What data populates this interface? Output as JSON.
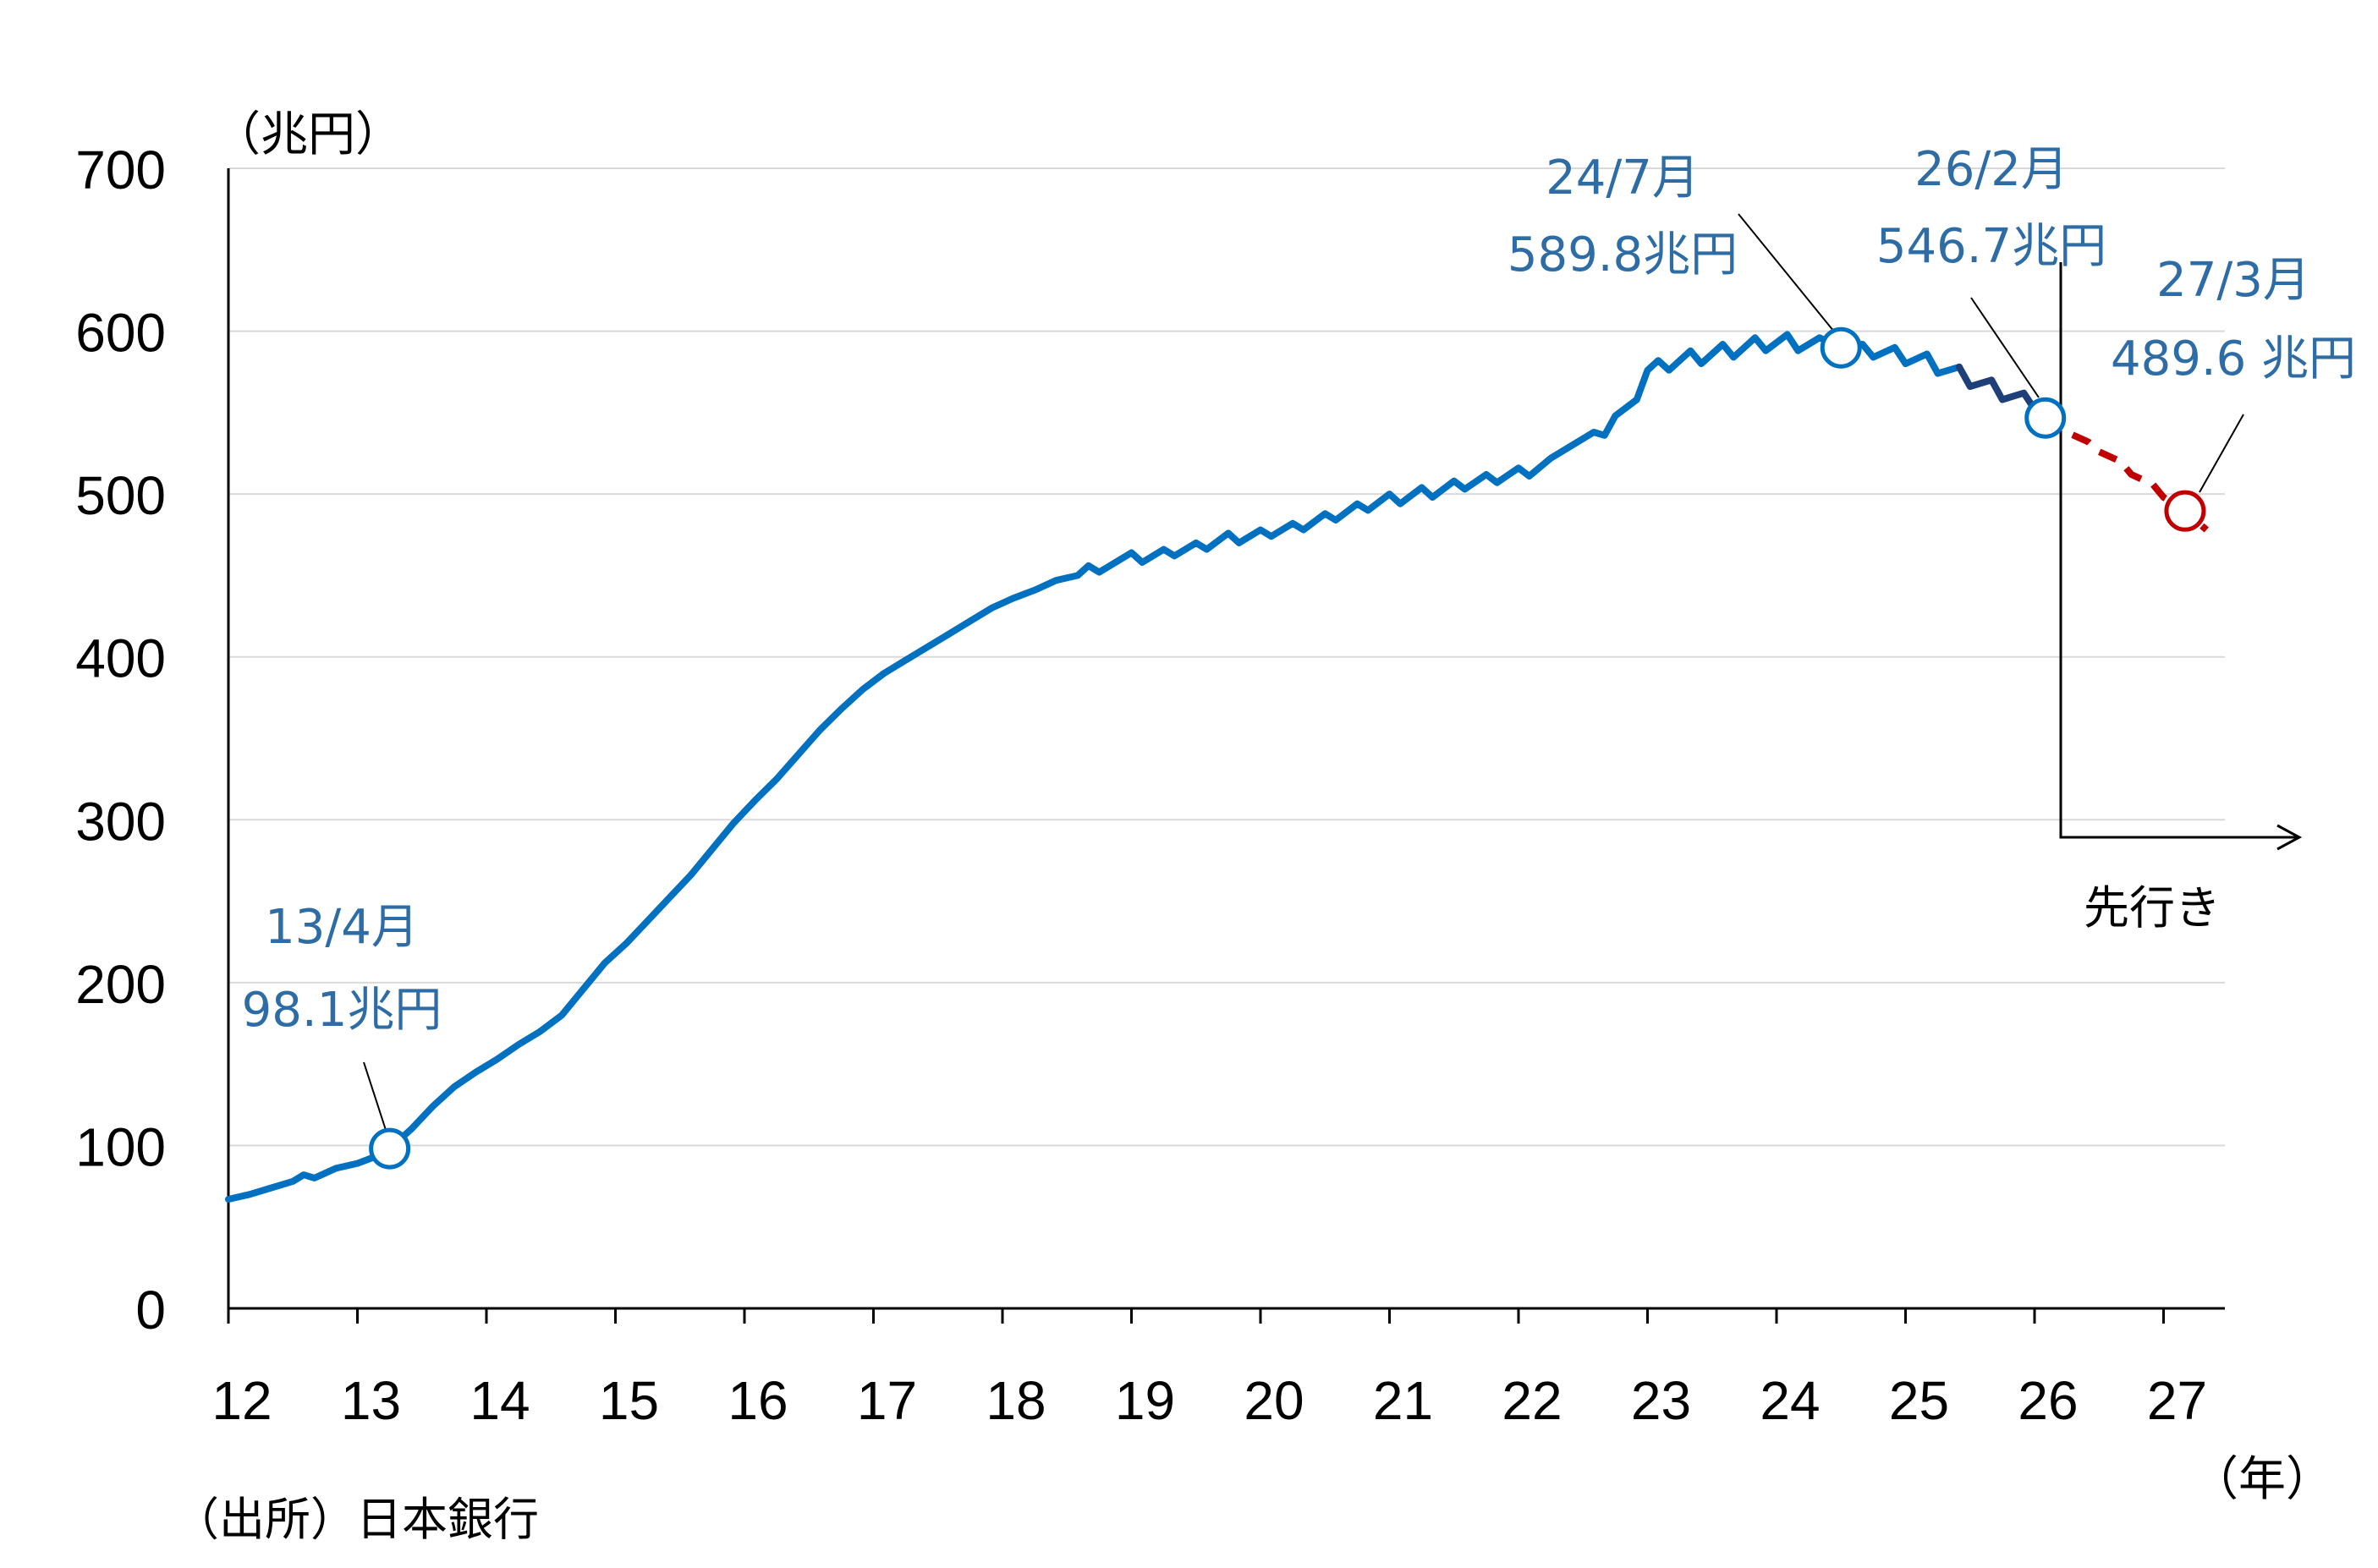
{
  "chart_data": {
    "type": "line",
    "y_unit_label": "（兆円）",
    "x_unit_label": "（年）",
    "source_note": "（出所）日本銀行",
    "forecast_label": "先行き",
    "ylim": [
      0,
      700
    ],
    "y_ticks": [
      "0",
      "100",
      "200",
      "300",
      "400",
      "500",
      "600",
      "700"
    ],
    "x_ticks": [
      "12",
      "13",
      "14",
      "15",
      "16",
      "17",
      "18",
      "19",
      "20",
      "21",
      "22",
      "23",
      "24",
      "25",
      "26",
      "27"
    ],
    "grid": "horizontal",
    "colors": {
      "actual": "#0070c0",
      "recent": "#1f3f7a",
      "forecast": "#c00000",
      "annotation": "#2e6ca6"
    },
    "series": [
      {
        "kind": "actual",
        "points": [
          [
            "2012-01",
            67
          ],
          [
            "2012-03",
            70
          ],
          [
            "2012-05",
            74
          ],
          [
            "2012-07",
            78
          ],
          [
            "2012-08",
            82
          ],
          [
            "2012-09",
            80
          ],
          [
            "2012-11",
            86
          ],
          [
            "2013-01",
            89
          ],
          [
            "2013-03",
            94
          ],
          [
            "2013-04",
            98.1
          ],
          [
            "2013-06",
            110
          ],
          [
            "2013-08",
            124
          ],
          [
            "2013-10",
            136
          ],
          [
            "2013-12",
            145
          ],
          [
            "2014-02",
            153
          ],
          [
            "2014-04",
            162
          ],
          [
            "2014-06",
            170
          ],
          [
            "2014-08",
            180
          ],
          [
            "2014-10",
            196
          ],
          [
            "2014-12",
            212
          ],
          [
            "2015-02",
            224
          ],
          [
            "2015-04",
            238
          ],
          [
            "2015-06",
            252
          ],
          [
            "2015-08",
            266
          ],
          [
            "2015-10",
            282
          ],
          [
            "2015-12",
            298
          ],
          [
            "2016-02",
            312
          ],
          [
            "2016-04",
            325
          ],
          [
            "2016-06",
            340
          ],
          [
            "2016-08",
            355
          ],
          [
            "2016-10",
            368
          ],
          [
            "2016-12",
            380
          ],
          [
            "2017-02",
            390
          ],
          [
            "2017-04",
            398
          ],
          [
            "2017-06",
            406
          ],
          [
            "2017-08",
            414
          ],
          [
            "2017-10",
            422
          ],
          [
            "2017-12",
            430
          ],
          [
            "2018-02",
            436
          ],
          [
            "2018-04",
            441
          ],
          [
            "2018-06",
            447
          ],
          [
            "2018-08",
            450
          ],
          [
            "2018-09",
            456
          ],
          [
            "2018-10",
            452
          ],
          [
            "2018-12",
            460
          ],
          [
            "2019-01",
            464
          ],
          [
            "2019-02",
            458
          ],
          [
            "2019-04",
            466
          ],
          [
            "2019-05",
            462
          ],
          [
            "2019-07",
            470
          ],
          [
            "2019-08",
            466
          ],
          [
            "2019-10",
            476
          ],
          [
            "2019-11",
            470
          ],
          [
            "2020-01",
            478
          ],
          [
            "2020-02",
            474
          ],
          [
            "2020-04",
            482
          ],
          [
            "2020-05",
            478
          ],
          [
            "2020-07",
            488
          ],
          [
            "2020-08",
            484
          ],
          [
            "2020-10",
            494
          ],
          [
            "2020-11",
            490
          ],
          [
            "2021-01",
            500
          ],
          [
            "2021-02",
            494
          ],
          [
            "2021-04",
            504
          ],
          [
            "2021-05",
            498
          ],
          [
            "2021-07",
            508
          ],
          [
            "2021-08",
            503
          ],
          [
            "2021-10",
            512
          ],
          [
            "2021-11",
            507
          ],
          [
            "2022-01",
            516
          ],
          [
            "2022-02",
            511
          ],
          [
            "2022-04",
            522
          ],
          [
            "2022-06",
            530
          ],
          [
            "2022-08",
            538
          ],
          [
            "2022-09",
            536
          ],
          [
            "2022-10",
            548
          ],
          [
            "2022-12",
            558
          ],
          [
            "2023-01",
            576
          ],
          [
            "2023-02",
            582
          ],
          [
            "2023-03",
            576
          ],
          [
            "2023-05",
            588
          ],
          [
            "2023-06",
            580
          ],
          [
            "2023-08",
            592
          ],
          [
            "2023-09",
            584
          ],
          [
            "2023-11",
            596
          ],
          [
            "2023-12",
            588
          ],
          [
            "2024-02",
            598
          ],
          [
            "2024-03",
            588
          ],
          [
            "2024-05",
            596
          ],
          [
            "2024-07",
            589.8
          ],
          [
            "2024-09",
            592
          ],
          [
            "2024-10",
            584
          ],
          [
            "2024-12",
            590
          ],
          [
            "2025-01",
            580
          ],
          [
            "2025-03",
            586
          ],
          [
            "2025-04",
            574
          ],
          [
            "2025-06",
            578
          ]
        ]
      },
      {
        "kind": "recent",
        "points": [
          [
            "2025-06",
            578
          ],
          [
            "2025-07",
            566
          ],
          [
            "2025-09",
            570
          ],
          [
            "2025-10",
            558
          ],
          [
            "2025-12",
            562
          ],
          [
            "2026-01",
            552
          ],
          [
            "2026-02",
            546.7
          ]
        ]
      },
      {
        "kind": "forecast",
        "points": [
          [
            "2026-02",
            546.7
          ],
          [
            "2026-04",
            538
          ],
          [
            "2026-06",
            532
          ],
          [
            "2026-07",
            526
          ],
          [
            "2026-09",
            520
          ],
          [
            "2026-10",
            512
          ],
          [
            "2026-12",
            506
          ],
          [
            "2027-01",
            498
          ],
          [
            "2027-03",
            489.6
          ],
          [
            "2027-05",
            478
          ]
        ]
      }
    ],
    "annotations": [
      {
        "label_date": "13/4月",
        "label_value": "98.1兆円",
        "at": [
          "2013-04",
          98.1
        ],
        "color": "#0070c0"
      },
      {
        "label_date": "24/7月",
        "label_value": "589.8兆円",
        "at": [
          "2024-07",
          589.8
        ],
        "color": "#0070c0"
      },
      {
        "label_date": "26/2月",
        "label_value": "546.7兆円",
        "at": [
          "2026-02",
          546.7
        ],
        "color": "#0070c0"
      },
      {
        "label_date": "27/3月",
        "label_value": "489.6 兆円",
        "at": [
          "2027-03",
          489.6
        ],
        "color": "#c00000"
      }
    ]
  }
}
